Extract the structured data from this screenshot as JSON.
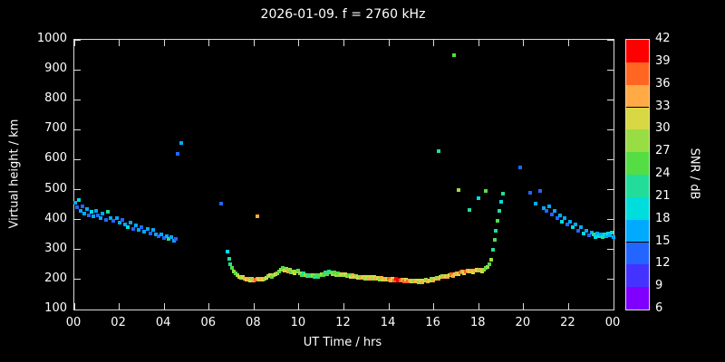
{
  "title": "2026-01-09. f = 2760 kHz",
  "foreground_color": "#ffffff",
  "background_color": "#000000",
  "chart_data": {
    "type": "scatter",
    "title": "2026-01-09. f = 2760 kHz",
    "xlabel": "UT Time / hrs",
    "ylabel": "Virtual height / km",
    "xlim": [
      0,
      24
    ],
    "ylim": [
      100,
      1000
    ],
    "grid": false,
    "x_ticks": {
      "values": [
        0,
        2,
        4,
        6,
        8,
        10,
        12,
        14,
        16,
        18,
        20,
        22,
        24
      ],
      "labels": [
        "00",
        "02",
        "04",
        "06",
        "08",
        "10",
        "12",
        "14",
        "16",
        "18",
        "20",
        "22",
        "00"
      ]
    },
    "y_ticks": [
      100,
      200,
      300,
      400,
      500,
      600,
      700,
      800,
      900,
      1000
    ],
    "points_format": "[ut_hours, virtual_height_km, snr_db]",
    "points": [
      [
        0.05,
        455,
        15
      ],
      [
        0.12,
        440,
        12
      ],
      [
        0.2,
        465,
        18
      ],
      [
        0.28,
        430,
        15
      ],
      [
        0.36,
        445,
        12
      ],
      [
        0.45,
        420,
        15
      ],
      [
        0.55,
        435,
        15
      ],
      [
        0.65,
        415,
        12
      ],
      [
        0.75,
        425,
        18
      ],
      [
        0.85,
        410,
        15
      ],
      [
        0.95,
        430,
        15
      ],
      [
        1.05,
        415,
        12
      ],
      [
        1.15,
        405,
        15
      ],
      [
        1.25,
        420,
        15
      ],
      [
        1.4,
        400,
        12
      ],
      [
        1.5,
        425,
        21
      ],
      [
        1.62,
        405,
        15
      ],
      [
        1.75,
        395,
        12
      ],
      [
        1.88,
        405,
        15
      ],
      [
        2.0,
        390,
        15
      ],
      [
        2.12,
        400,
        12
      ],
      [
        2.25,
        385,
        15
      ],
      [
        2.38,
        375,
        18
      ],
      [
        2.5,
        390,
        15
      ],
      [
        2.62,
        370,
        12
      ],
      [
        2.75,
        380,
        15
      ],
      [
        2.88,
        365,
        15
      ],
      [
        3.0,
        375,
        12
      ],
      [
        3.12,
        360,
        15
      ],
      [
        3.25,
        370,
        15
      ],
      [
        3.38,
        355,
        12
      ],
      [
        3.5,
        365,
        15
      ],
      [
        3.62,
        350,
        15
      ],
      [
        3.75,
        345,
        12
      ],
      [
        3.88,
        350,
        15
      ],
      [
        4.0,
        340,
        12
      ],
      [
        4.1,
        345,
        15
      ],
      [
        4.2,
        335,
        21
      ],
      [
        4.3,
        342,
        15
      ],
      [
        4.42,
        330,
        15
      ],
      [
        4.52,
        336,
        12
      ],
      [
        4.6,
        620,
        12
      ],
      [
        4.75,
        655,
        15
      ],
      [
        6.55,
        452,
        12
      ],
      [
        6.8,
        292,
        18
      ],
      [
        6.88,
        268,
        21
      ],
      [
        6.95,
        252,
        21
      ],
      [
        7.02,
        240,
        24
      ],
      [
        7.1,
        228,
        27
      ],
      [
        7.18,
        220,
        24
      ],
      [
        7.26,
        214,
        27
      ],
      [
        7.34,
        208,
        30
      ],
      [
        7.42,
        205,
        27
      ],
      [
        7.5,
        210,
        30
      ],
      [
        7.58,
        204,
        33
      ],
      [
        7.66,
        200,
        30
      ],
      [
        7.74,
        202,
        33
      ],
      [
        7.82,
        198,
        30
      ],
      [
        7.9,
        202,
        27
      ],
      [
        7.98,
        198,
        33
      ],
      [
        8.06,
        200,
        36
      ],
      [
        8.14,
        204,
        33
      ],
      [
        8.15,
        412,
        33
      ],
      [
        8.22,
        200,
        30
      ],
      [
        8.3,
        204,
        33
      ],
      [
        8.38,
        199,
        30
      ],
      [
        8.46,
        203,
        27
      ],
      [
        8.54,
        207,
        30
      ],
      [
        8.62,
        211,
        27
      ],
      [
        8.7,
        214,
        30
      ],
      [
        8.78,
        209,
        24
      ],
      [
        8.86,
        214,
        27
      ],
      [
        8.94,
        218,
        30
      ],
      [
        9.02,
        222,
        27
      ],
      [
        9.1,
        227,
        24
      ],
      [
        9.18,
        233,
        27
      ],
      [
        9.26,
        238,
        24
      ],
      [
        9.34,
        231,
        30
      ],
      [
        9.42,
        236,
        27
      ],
      [
        9.5,
        228,
        33
      ],
      [
        9.58,
        232,
        27
      ],
      [
        9.66,
        224,
        24
      ],
      [
        9.74,
        228,
        27
      ],
      [
        9.82,
        221,
        30
      ],
      [
        9.9,
        226,
        27
      ],
      [
        9.98,
        230,
        24
      ],
      [
        10.06,
        221,
        27
      ],
      [
        10.14,
        216,
        24
      ],
      [
        10.22,
        220,
        21
      ],
      [
        10.3,
        215,
        27
      ],
      [
        10.38,
        211,
        24
      ],
      [
        10.46,
        216,
        21
      ],
      [
        10.54,
        211,
        24
      ],
      [
        10.62,
        215,
        27
      ],
      [
        10.7,
        210,
        21
      ],
      [
        10.78,
        214,
        24
      ],
      [
        10.86,
        209,
        21
      ],
      [
        10.94,
        214,
        24
      ],
      [
        11.02,
        218,
        27
      ],
      [
        11.1,
        214,
        24
      ],
      [
        11.18,
        224,
        21
      ],
      [
        11.26,
        219,
        24
      ],
      [
        11.34,
        228,
        21
      ],
      [
        11.42,
        223,
        24
      ],
      [
        11.5,
        219,
        27
      ],
      [
        11.58,
        224,
        24
      ],
      [
        11.66,
        216,
        27
      ],
      [
        11.74,
        221,
        24
      ],
      [
        11.82,
        215,
        27
      ],
      [
        11.9,
        219,
        30
      ],
      [
        11.98,
        214,
        27
      ],
      [
        12.06,
        217,
        30
      ],
      [
        12.14,
        212,
        27
      ],
      [
        12.22,
        216,
        24
      ],
      [
        12.3,
        210,
        30
      ],
      [
        12.38,
        214,
        33
      ],
      [
        12.46,
        208,
        30
      ],
      [
        12.54,
        212,
        27
      ],
      [
        12.62,
        206,
        30
      ],
      [
        12.7,
        210,
        27
      ],
      [
        12.78,
        205,
        33
      ],
      [
        12.86,
        209,
        30
      ],
      [
        12.94,
        204,
        27
      ],
      [
        13.02,
        208,
        30
      ],
      [
        13.1,
        204,
        33
      ],
      [
        13.18,
        209,
        30
      ],
      [
        13.26,
        203,
        27
      ],
      [
        13.34,
        208,
        30
      ],
      [
        13.42,
        202,
        33
      ],
      [
        13.5,
        206,
        30
      ],
      [
        13.58,
        201,
        27
      ],
      [
        13.66,
        205,
        33
      ],
      [
        13.74,
        200,
        30
      ],
      [
        13.82,
        204,
        33
      ],
      [
        13.9,
        199,
        30
      ],
      [
        13.98,
        203,
        36
      ],
      [
        14.06,
        198,
        33
      ],
      [
        14.14,
        202,
        30
      ],
      [
        14.22,
        198,
        36
      ],
      [
        14.3,
        202,
        39
      ],
      [
        14.38,
        197,
        42
      ],
      [
        14.46,
        200,
        39
      ],
      [
        14.54,
        196,
        36
      ],
      [
        14.62,
        200,
        33
      ],
      [
        14.7,
        195,
        36
      ],
      [
        14.78,
        199,
        30
      ],
      [
        14.86,
        195,
        36
      ],
      [
        14.94,
        198,
        33
      ],
      [
        15.02,
        194,
        30
      ],
      [
        15.1,
        198,
        27
      ],
      [
        15.18,
        193,
        33
      ],
      [
        15.26,
        197,
        30
      ],
      [
        15.34,
        192,
        27
      ],
      [
        15.42,
        196,
        30
      ],
      [
        15.5,
        192,
        33
      ],
      [
        15.58,
        196,
        30
      ],
      [
        15.66,
        199,
        27
      ],
      [
        15.74,
        194,
        33
      ],
      [
        15.82,
        198,
        30
      ],
      [
        15.9,
        202,
        27
      ],
      [
        15.98,
        198,
        33
      ],
      [
        16.06,
        202,
        30
      ],
      [
        16.14,
        207,
        27
      ],
      [
        16.2,
        630,
        21
      ],
      [
        16.22,
        203,
        33
      ],
      [
        16.3,
        208,
        30
      ],
      [
        16.38,
        212,
        27
      ],
      [
        16.46,
        208,
        33
      ],
      [
        16.54,
        213,
        30
      ],
      [
        16.62,
        209,
        33
      ],
      [
        16.7,
        214,
        30
      ],
      [
        16.78,
        218,
        36
      ],
      [
        16.86,
        213,
        33
      ],
      [
        16.9,
        950,
        24
      ],
      [
        16.94,
        218,
        30
      ],
      [
        17.02,
        222,
        33
      ],
      [
        17.1,
        498,
        27
      ],
      [
        17.1,
        218,
        30
      ],
      [
        17.18,
        223,
        36
      ],
      [
        17.26,
        227,
        33
      ],
      [
        17.34,
        222,
        30
      ],
      [
        17.42,
        227,
        36
      ],
      [
        17.5,
        231,
        33
      ],
      [
        17.58,
        226,
        30
      ],
      [
        17.6,
        432,
        21
      ],
      [
        17.66,
        230,
        33
      ],
      [
        17.74,
        225,
        30
      ],
      [
        17.82,
        229,
        33
      ],
      [
        17.9,
        234,
        30
      ],
      [
        17.98,
        229,
        27
      ],
      [
        18.0,
        470,
        18
      ],
      [
        18.06,
        233,
        33
      ],
      [
        18.14,
        228,
        30
      ],
      [
        18.22,
        233,
        27
      ],
      [
        18.3,
        238,
        24
      ],
      [
        18.3,
        495,
        24
      ],
      [
        18.38,
        242,
        27
      ],
      [
        18.46,
        252,
        24
      ],
      [
        18.54,
        266,
        27
      ],
      [
        18.62,
        298,
        21
      ],
      [
        18.7,
        332,
        24
      ],
      [
        18.76,
        362,
        21
      ],
      [
        18.82,
        395,
        24
      ],
      [
        18.9,
        428,
        21
      ],
      [
        18.98,
        458,
        18
      ],
      [
        19.06,
        488,
        21
      ],
      [
        19.85,
        575,
        12
      ],
      [
        20.3,
        490,
        12
      ],
      [
        20.55,
        452,
        15
      ],
      [
        20.75,
        497,
        12
      ],
      [
        20.9,
        438,
        15
      ],
      [
        21.0,
        430,
        12
      ],
      [
        21.12,
        444,
        15
      ],
      [
        21.24,
        418,
        12
      ],
      [
        21.36,
        428,
        15
      ],
      [
        21.48,
        404,
        12
      ],
      [
        21.6,
        414,
        15
      ],
      [
        21.72,
        394,
        18
      ],
      [
        21.84,
        404,
        15
      ],
      [
        21.96,
        384,
        12
      ],
      [
        22.08,
        394,
        15
      ],
      [
        22.2,
        374,
        18
      ],
      [
        22.32,
        384,
        15
      ],
      [
        22.44,
        364,
        12
      ],
      [
        22.56,
        374,
        15
      ],
      [
        22.68,
        354,
        18
      ],
      [
        22.8,
        364,
        15
      ],
      [
        22.92,
        348,
        12
      ],
      [
        23.04,
        356,
        15
      ],
      [
        23.12,
        350,
        21
      ],
      [
        23.2,
        342,
        18
      ],
      [
        23.28,
        354,
        15
      ],
      [
        23.36,
        346,
        18
      ],
      [
        23.44,
        352,
        15
      ],
      [
        23.52,
        341,
        21
      ],
      [
        23.6,
        350,
        18
      ],
      [
        23.68,
        344,
        15
      ],
      [
        23.76,
        354,
        18
      ],
      [
        23.84,
        347,
        15
      ],
      [
        23.92,
        356,
        18
      ],
      [
        23.98,
        342,
        15
      ]
    ]
  },
  "colorbar": {
    "label": "SNR / dB",
    "min": 6,
    "max": 42,
    "ticks": [
      6,
      9,
      12,
      15,
      18,
      21,
      24,
      27,
      30,
      33,
      36,
      39,
      42
    ],
    "segments": [
      {
        "from": 6,
        "to": 9,
        "color": "#7f00ff"
      },
      {
        "from": 9,
        "to": 12,
        "color": "#4433ff"
      },
      {
        "from": 12,
        "to": 15,
        "color": "#2266ff"
      },
      {
        "from": 15,
        "to": 18,
        "color": "#00aaff"
      },
      {
        "from": 18,
        "to": 21,
        "color": "#00dddd"
      },
      {
        "from": 21,
        "to": 24,
        "color": "#22dd99"
      },
      {
        "from": 24,
        "to": 27,
        "color": "#55dd44"
      },
      {
        "from": 27,
        "to": 30,
        "color": "#99dd44"
      },
      {
        "from": 30,
        "to": 33,
        "color": "#d8d844"
      },
      {
        "from": 33,
        "to": 36,
        "color": "#ffaa44"
      },
      {
        "from": 36,
        "to": 39,
        "color": "#ff6622"
      },
      {
        "from": 39,
        "to": 42,
        "color": "#ff0000"
      }
    ]
  }
}
